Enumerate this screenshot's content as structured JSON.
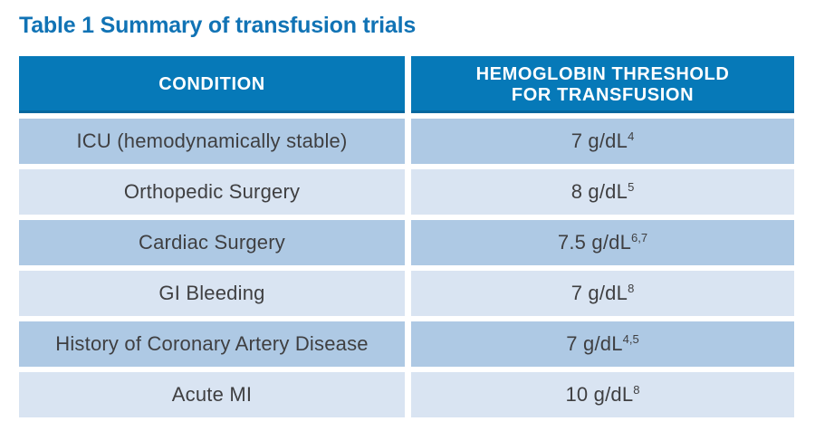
{
  "title": "Table 1 Summary of transfusion trials",
  "colors": {
    "title_text": "#1173b5",
    "header_bg": "#0679b8",
    "header_text": "#ffffff",
    "row_dark_bg": "#aec9e4",
    "row_light_bg": "#d9e4f2",
    "row_text": "#3f3f41",
    "page_bg": "#ffffff"
  },
  "table": {
    "header": {
      "condition": "CONDITION",
      "threshold_line1": "HEMOGLOBIN THRESHOLD",
      "threshold_line2": "FOR TRANSFUSION"
    },
    "rows": [
      {
        "condition": "ICU (hemodynamically stable)",
        "threshold": "7 g/dL",
        "refs": "4"
      },
      {
        "condition": "Orthopedic Surgery",
        "threshold": "8 g/dL",
        "refs": "5"
      },
      {
        "condition": "Cardiac Surgery",
        "threshold": "7.5 g/dL",
        "refs": "6,7"
      },
      {
        "condition": "GI Bleeding",
        "threshold": "7 g/dL",
        "refs": "8"
      },
      {
        "condition": "History of Coronary Artery Disease",
        "threshold": "7 g/dL",
        "refs": "4,5"
      },
      {
        "condition": "Acute MI",
        "threshold": "10 g/dL",
        "refs": "8"
      }
    ]
  },
  "chart_data": {
    "type": "table",
    "title": "Table 1 Summary of transfusion trials",
    "columns": [
      "CONDITION",
      "HEMOGLOBIN THRESHOLD FOR TRANSFUSION"
    ],
    "rows": [
      [
        "ICU (hemodynamically stable)",
        "7 g/dL (ref 4)"
      ],
      [
        "Orthopedic Surgery",
        "8 g/dL (ref 5)"
      ],
      [
        "Cardiac Surgery",
        "7.5 g/dL (refs 6,7)"
      ],
      [
        "GI Bleeding",
        "7 g/dL (ref 8)"
      ],
      [
        "History of Coronary Artery Disease",
        "7 g/dL (refs 4,5)"
      ],
      [
        "Acute MI",
        "10 g/dL (ref 8)"
      ]
    ]
  }
}
